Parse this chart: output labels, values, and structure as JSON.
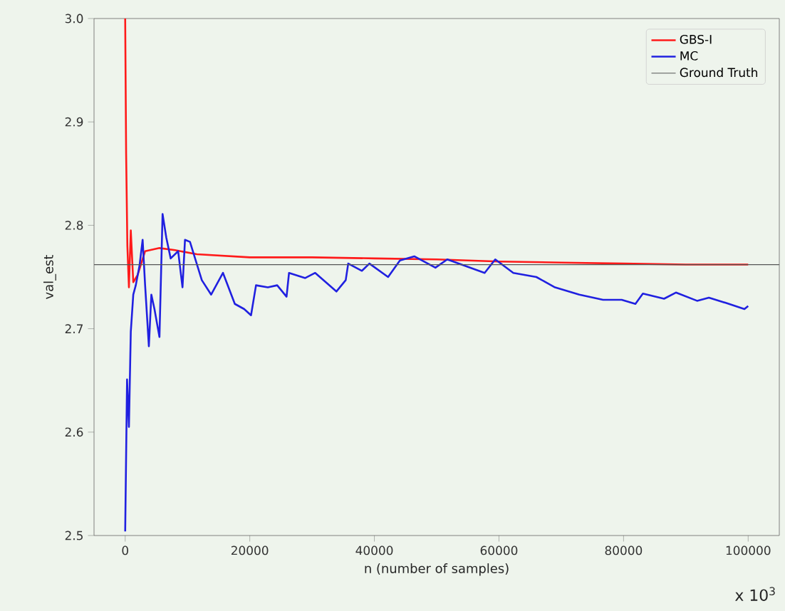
{
  "chart_data": {
    "type": "line",
    "xlabel": "n (number of samples)",
    "ylabel": "val_est",
    "xlim": [
      -5000,
      105000
    ],
    "ylim": [
      2.5,
      3.0
    ],
    "xticks": [
      0,
      20000,
      40000,
      60000,
      80000,
      100000
    ],
    "yticks": [
      2.5,
      2.6,
      2.7,
      2.8,
      2.9,
      {
        "value": 3.0,
        "label": "3.0"
      }
    ],
    "legend": "top right",
    "grid": false,
    "marker": "none",
    "line_style": "solid",
    "annotations": [
      "x 10$^{3}$"
    ],
    "ref_lines": [
      {
        "axis": "y",
        "value": 2.762,
        "label": "Ground Truth",
        "color": "#555555"
      }
    ],
    "series": [
      {
        "name": "GBS-I",
        "color": "#ff1a1a",
        "x": [
          0,
          150,
          350,
          600,
          900,
          1300,
          2000,
          3200,
          5500,
          8000,
          11500,
          20000,
          30000,
          40000,
          50000,
          60000,
          70000,
          80000,
          90000,
          100000
        ],
        "values": [
          3.0,
          2.87,
          2.78,
          2.74,
          2.795,
          2.745,
          2.752,
          2.775,
          2.778,
          2.776,
          2.772,
          2.769,
          2.769,
          2.768,
          2.767,
          2.765,
          2.764,
          2.763,
          2.762,
          2.762
        ]
      },
      {
        "name": "MC",
        "color": "#2020e0",
        "x": [
          0,
          300,
          600,
          900,
          1300,
          1700,
          2300,
          2800,
          3200,
          3800,
          4200,
          4700,
          5500,
          6000,
          6600,
          7300,
          8500,
          9200,
          9600,
          10400,
          12300,
          13800,
          15700,
          17600,
          19100,
          20200,
          21000,
          22900,
          24400,
          25900,
          26300,
          28900,
          30500,
          33900,
          35400,
          35800,
          38000,
          39200,
          42200,
          44100,
          46400,
          49800,
          51700,
          57700,
          59400,
          62300,
          66000,
          69000,
          72900,
          76700,
          79700,
          81900,
          83100,
          86500,
          88400,
          91800,
          93700,
          96400,
          99400,
          100000
        ],
        "values": [
          2.504,
          2.651,
          2.605,
          2.697,
          2.733,
          2.742,
          2.761,
          2.786,
          2.742,
          2.683,
          2.733,
          2.719,
          2.692,
          2.811,
          2.788,
          2.768,
          2.775,
          2.74,
          2.786,
          2.784,
          2.747,
          2.733,
          2.754,
          2.724,
          2.719,
          2.713,
          2.742,
          2.74,
          2.742,
          2.731,
          2.754,
          2.749,
          2.754,
          2.736,
          2.747,
          2.763,
          2.756,
          2.763,
          2.75,
          2.766,
          2.77,
          2.759,
          2.767,
          2.754,
          2.767,
          2.754,
          2.75,
          2.74,
          2.733,
          2.728,
          2.728,
          2.724,
          2.734,
          2.729,
          2.735,
          2.727,
          2.73,
          2.725,
          2.719,
          2.722
        ]
      }
    ]
  }
}
